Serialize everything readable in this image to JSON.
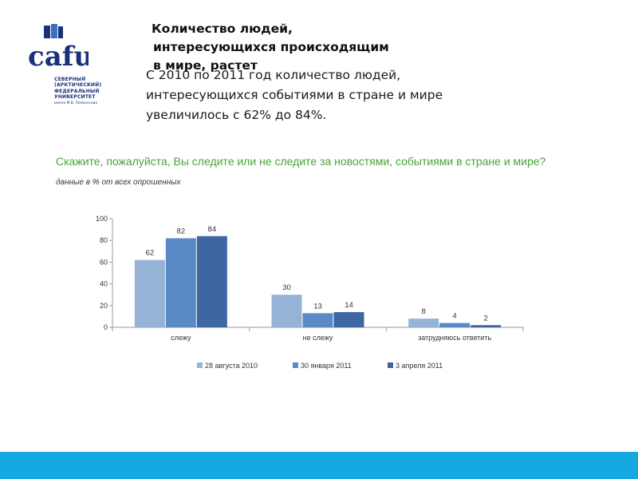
{
  "logo": {
    "brand": "cafu",
    "lines": [
      "СЕВЕРНЫЙ",
      "(АРКТИЧЕСКИЙ)",
      "ФЕДЕРАЛЬНЫЙ",
      "УНИВЕРСИТЕТ"
    ],
    "small": "имени М.В. Ломоносова",
    "color": "#1c2f7a"
  },
  "slide": {
    "title_lines": [
      "Количество людей,",
      "интересующихся происходящим",
      "в мире, растет"
    ],
    "lead_lines": [
      "С 2010 по 2011 год количество людей,",
      "интересующихся событиями в стране и мире",
      "увеличилось с 62% до 84%."
    ]
  },
  "chart_data": {
    "type": "bar",
    "title": "Скажите, пожалуйста, Вы следите или не следите за новостями, событиями в стране и мире?",
    "subtitle": "данные в % от всех опрошенных",
    "categories": [
      "слежу",
      "не слежу",
      "затрудняюсь ответить"
    ],
    "series": [
      {
        "name": "28 августа 2010",
        "values": [
          62,
          30,
          8
        ],
        "color": "#95b3d7"
      },
      {
        "name": "30 января 2011",
        "values": [
          82,
          13,
          4
        ],
        "color": "#5a8ac6"
      },
      {
        "name": "3 апреля 2011",
        "values": [
          84,
          14,
          2
        ],
        "color": "#3d66a3"
      }
    ],
    "yticks": [
      0,
      20,
      40,
      60,
      80,
      100
    ],
    "ylim": [
      0,
      100
    ],
    "grid": false,
    "legend": "bottom"
  },
  "footer": {
    "color": "#16a8e0"
  }
}
